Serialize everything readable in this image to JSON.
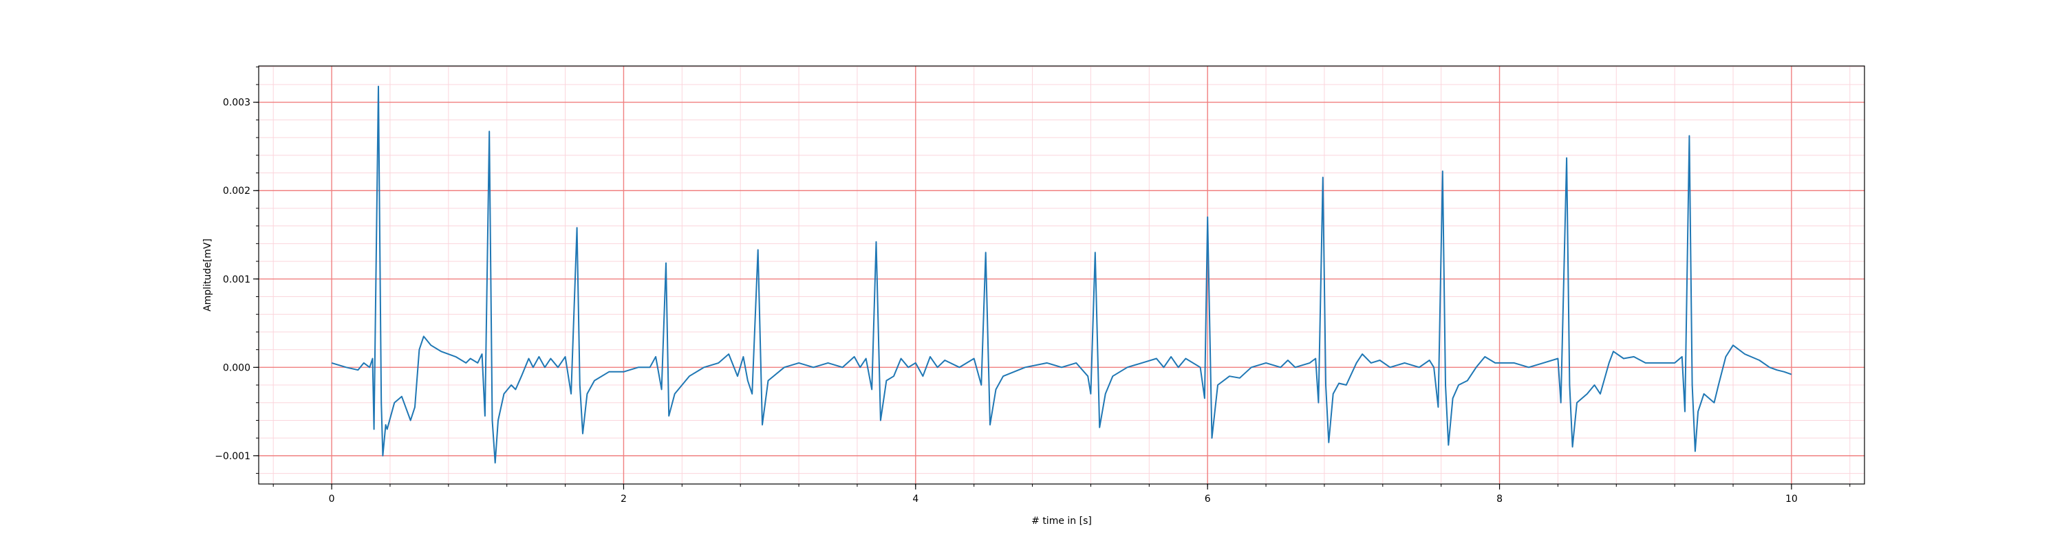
{
  "chart_data": {
    "type": "line",
    "title": "",
    "xlabel": "# time in [s]",
    "ylabel": "Amplitude[mV]",
    "xlim": [
      -0.5,
      10.5
    ],
    "ylim": [
      -0.00132,
      0.00341
    ],
    "xticks": [
      0,
      2,
      4,
      6,
      8,
      10
    ],
    "xtick_labels": [
      "0",
      "2",
      "4",
      "6",
      "8",
      "10"
    ],
    "yticks": [
      -0.001,
      0.0,
      0.001,
      0.002,
      0.003
    ],
    "ytick_labels": [
      "−0.001",
      "0.000",
      "0.001",
      "0.002",
      "0.003"
    ],
    "grid": {
      "major": true,
      "minor": true,
      "major_color": "#f08080",
      "minor_color": "#fbd5dc"
    },
    "line_color": "#1f77b4",
    "series": [
      {
        "values": [
          [
            0.0,
            5e-05
          ],
          [
            0.1,
            0.0
          ],
          [
            0.18,
            -3e-05
          ],
          [
            0.22,
            5e-05
          ],
          [
            0.26,
            0.0
          ],
          [
            0.28,
            0.0001
          ],
          [
            0.29,
            -0.0007
          ],
          [
            0.32,
            0.00318
          ],
          [
            0.34,
            -0.0004
          ],
          [
            0.35,
            -0.001
          ],
          [
            0.37,
            -0.00065
          ],
          [
            0.38,
            -0.0007
          ],
          [
            0.43,
            -0.0004
          ],
          [
            0.48,
            -0.00033
          ],
          [
            0.54,
            -0.0006
          ],
          [
            0.57,
            -0.00045
          ],
          [
            0.6,
            0.0002
          ],
          [
            0.63,
            0.00035
          ],
          [
            0.68,
            0.00025
          ],
          [
            0.75,
            0.00018
          ],
          [
            0.85,
            0.00012
          ],
          [
            0.92,
            5e-05
          ],
          [
            0.95,
            0.0001
          ],
          [
            1.0,
            5e-05
          ],
          [
            1.03,
            0.00015
          ],
          [
            1.05,
            -0.00055
          ],
          [
            1.08,
            0.00267
          ],
          [
            1.1,
            -0.0006
          ],
          [
            1.12,
            -0.00108
          ],
          [
            1.14,
            -0.0006
          ],
          [
            1.18,
            -0.0003
          ],
          [
            1.23,
            -0.0002
          ],
          [
            1.26,
            -0.00025
          ],
          [
            1.3,
            -0.0001
          ],
          [
            1.35,
            0.0001
          ],
          [
            1.38,
            0.0
          ],
          [
            1.42,
            0.00012
          ],
          [
            1.46,
            0.0
          ],
          [
            1.5,
            0.0001
          ],
          [
            1.55,
            0.0
          ],
          [
            1.6,
            0.00012
          ],
          [
            1.64,
            -0.0003
          ],
          [
            1.68,
            0.00158
          ],
          [
            1.7,
            -0.0002
          ],
          [
            1.72,
            -0.00075
          ],
          [
            1.75,
            -0.0003
          ],
          [
            1.8,
            -0.00015
          ],
          [
            1.9,
            -5e-05
          ],
          [
            2.0,
            -5e-05
          ],
          [
            2.1,
            0.0
          ],
          [
            2.18,
            0.0
          ],
          [
            2.22,
            0.00012
          ],
          [
            2.26,
            -0.00025
          ],
          [
            2.29,
            0.00118
          ],
          [
            2.31,
            -0.00055
          ],
          [
            2.35,
            -0.0003
          ],
          [
            2.45,
            -0.0001
          ],
          [
            2.55,
            0.0
          ],
          [
            2.65,
            5e-05
          ],
          [
            2.72,
            0.00015
          ],
          [
            2.78,
            -0.0001
          ],
          [
            2.82,
            0.00012
          ],
          [
            2.85,
            -0.00015
          ],
          [
            2.88,
            -0.0003
          ],
          [
            2.92,
            0.00133
          ],
          [
            2.95,
            -0.00065
          ],
          [
            2.99,
            -0.00015
          ],
          [
            3.1,
            0.0
          ],
          [
            3.2,
            5e-05
          ],
          [
            3.3,
            0.0
          ],
          [
            3.4,
            5e-05
          ],
          [
            3.5,
            0.0
          ],
          [
            3.58,
            0.00012
          ],
          [
            3.62,
            0.0
          ],
          [
            3.66,
            0.0001
          ],
          [
            3.7,
            -0.00025
          ],
          [
            3.73,
            0.00142
          ],
          [
            3.76,
            -0.0006
          ],
          [
            3.8,
            -0.00015
          ],
          [
            3.85,
            -0.0001
          ],
          [
            3.9,
            0.0001
          ],
          [
            3.95,
            0.0
          ],
          [
            4.0,
            5e-05
          ],
          [
            4.05,
            -0.0001
          ],
          [
            4.1,
            0.00012
          ],
          [
            4.15,
            0.0
          ],
          [
            4.2,
            8e-05
          ],
          [
            4.3,
            0.0
          ],
          [
            4.4,
            0.0001
          ],
          [
            4.45,
            -0.0002
          ],
          [
            4.48,
            0.0013
          ],
          [
            4.51,
            -0.00065
          ],
          [
            4.55,
            -0.00025
          ],
          [
            4.6,
            -0.0001
          ],
          [
            4.75,
            0.0
          ],
          [
            4.9,
            5e-05
          ],
          [
            5.0,
            0.0
          ],
          [
            5.1,
            5e-05
          ],
          [
            5.18,
            -0.0001
          ],
          [
            5.2,
            -0.0003
          ],
          [
            5.23,
            0.0013
          ],
          [
            5.26,
            -0.00068
          ],
          [
            5.3,
            -0.0003
          ],
          [
            5.35,
            -0.0001
          ],
          [
            5.45,
            0.0
          ],
          [
            5.55,
            5e-05
          ],
          [
            5.65,
            0.0001
          ],
          [
            5.7,
            0.0
          ],
          [
            5.75,
            0.00012
          ],
          [
            5.8,
            0.0
          ],
          [
            5.85,
            0.0001
          ],
          [
            5.95,
            0.0
          ],
          [
            5.98,
            -0.00035
          ],
          [
            6.0,
            0.0017
          ],
          [
            6.03,
            -0.0008
          ],
          [
            6.07,
            -0.0002
          ],
          [
            6.15,
            -0.0001
          ],
          [
            6.22,
            -0.00012
          ],
          [
            6.3,
            0.0
          ],
          [
            6.4,
            5e-05
          ],
          [
            6.5,
            0.0
          ],
          [
            6.55,
            8e-05
          ],
          [
            6.6,
            0.0
          ],
          [
            6.7,
            5e-05
          ],
          [
            6.74,
            0.0001
          ],
          [
            6.76,
            -0.0004
          ],
          [
            6.79,
            0.00215
          ],
          [
            6.81,
            -0.0002
          ],
          [
            6.83,
            -0.00085
          ],
          [
            6.86,
            -0.0003
          ],
          [
            6.9,
            -0.00018
          ],
          [
            6.95,
            -0.0002
          ],
          [
            7.02,
            5e-05
          ],
          [
            7.06,
            0.00015
          ],
          [
            7.12,
            5e-05
          ],
          [
            7.18,
            8e-05
          ],
          [
            7.25,
            0.0
          ],
          [
            7.35,
            5e-05
          ],
          [
            7.45,
            0.0
          ],
          [
            7.52,
            8e-05
          ],
          [
            7.55,
            0.0
          ],
          [
            7.58,
            -0.00045
          ],
          [
            7.61,
            0.00222
          ],
          [
            7.63,
            -0.0002
          ],
          [
            7.65,
            -0.00088
          ],
          [
            7.68,
            -0.00035
          ],
          [
            7.72,
            -0.0002
          ],
          [
            7.78,
            -0.00015
          ],
          [
            7.84,
            0.0
          ],
          [
            7.9,
            0.00012
          ],
          [
            7.97,
            5e-05
          ],
          [
            8.1,
            5e-05
          ],
          [
            8.2,
            0.0
          ],
          [
            8.3,
            5e-05
          ],
          [
            8.4,
            0.0001
          ],
          [
            8.42,
            -0.0004
          ],
          [
            8.46,
            0.00237
          ],
          [
            8.48,
            -0.0002
          ],
          [
            8.5,
            -0.0009
          ],
          [
            8.53,
            -0.0004
          ],
          [
            8.6,
            -0.0003
          ],
          [
            8.65,
            -0.0002
          ],
          [
            8.69,
            -0.0003
          ],
          [
            8.75,
            5e-05
          ],
          [
            8.78,
            0.00018
          ],
          [
            8.85,
            0.0001
          ],
          [
            8.92,
            0.00012
          ],
          [
            9.0,
            5e-05
          ],
          [
            9.1,
            5e-05
          ],
          [
            9.2,
            5e-05
          ],
          [
            9.25,
            0.00012
          ],
          [
            9.27,
            -0.0005
          ],
          [
            9.3,
            0.00262
          ],
          [
            9.32,
            -0.0002
          ],
          [
            9.34,
            -0.00095
          ],
          [
            9.36,
            -0.0005
          ],
          [
            9.4,
            -0.0003
          ],
          [
            9.47,
            -0.0004
          ],
          [
            9.5,
            -0.0002
          ],
          [
            9.55,
            0.00012
          ],
          [
            9.6,
            0.00025
          ],
          [
            9.68,
            0.00015
          ],
          [
            9.78,
            8e-05
          ],
          [
            9.85,
            0.0
          ],
          [
            9.9,
            -3e-05
          ],
          [
            9.95,
            -5e-05
          ],
          [
            10.0,
            -8e-05
          ]
        ]
      }
    ]
  }
}
